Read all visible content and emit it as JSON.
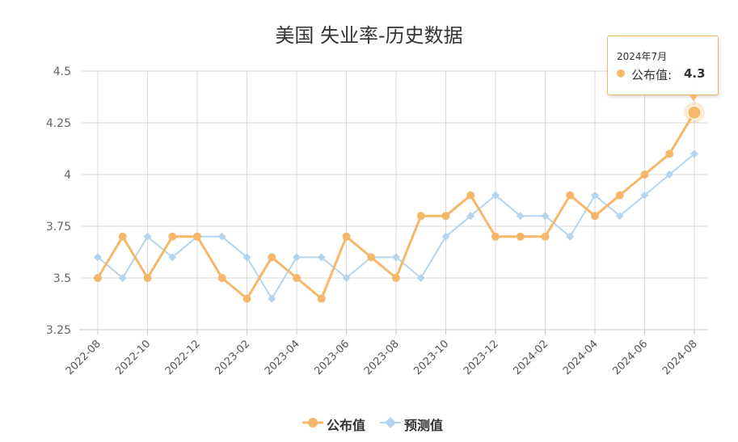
{
  "title": "美国 失业率-历史数据",
  "chart_data": {
    "type": "line",
    "categories": [
      "2022-08",
      "2022-09",
      "2022-10",
      "2022-11",
      "2022-12",
      "2023-01",
      "2023-02",
      "2023-03",
      "2023-04",
      "2023-05",
      "2023-06",
      "2023-07",
      "2023-08",
      "2023-09",
      "2023-10",
      "2023-11",
      "2023-12",
      "2024-01",
      "2024-02",
      "2024-03",
      "2024-04",
      "2024-05",
      "2024-06",
      "2024-07",
      "2024-08"
    ],
    "tick_labels": [
      "2022-08",
      "2022-10",
      "2022-12",
      "2023-02",
      "2023-04",
      "2023-06",
      "2023-08",
      "2023-10",
      "2023-12",
      "2024-02",
      "2024-04",
      "2024-06",
      "2024-08"
    ],
    "series": [
      {
        "name": "公布值",
        "color": "#f5b86b",
        "marker": "circle",
        "values": [
          3.5,
          3.7,
          3.5,
          3.7,
          3.7,
          3.5,
          3.4,
          3.6,
          3.5,
          3.4,
          3.7,
          3.6,
          3.5,
          3.8,
          3.8,
          3.9,
          3.7,
          3.7,
          3.7,
          3.9,
          3.8,
          3.9,
          4.0,
          4.1,
          4.3
        ]
      },
      {
        "name": "预测值",
        "color": "#b5d5ee",
        "marker": "diamond",
        "values": [
          3.6,
          3.5,
          3.7,
          3.6,
          3.7,
          3.7,
          3.6,
          3.4,
          3.6,
          3.6,
          3.5,
          3.6,
          3.6,
          3.5,
          3.7,
          3.8,
          3.9,
          3.8,
          3.8,
          3.7,
          3.9,
          3.8,
          3.9,
          4.0,
          4.1
        ]
      }
    ],
    "y_ticks": [
      "3.25",
      "3.5",
      "3.75",
      "4",
      "4.25",
      "4.5"
    ],
    "ylim": [
      3.25,
      4.5
    ],
    "grid": true,
    "legend_position": "bottom-center"
  },
  "tooltip": {
    "date": "2024年7月",
    "label": "公布值:",
    "value": "4.3",
    "highlight_index": 24
  }
}
